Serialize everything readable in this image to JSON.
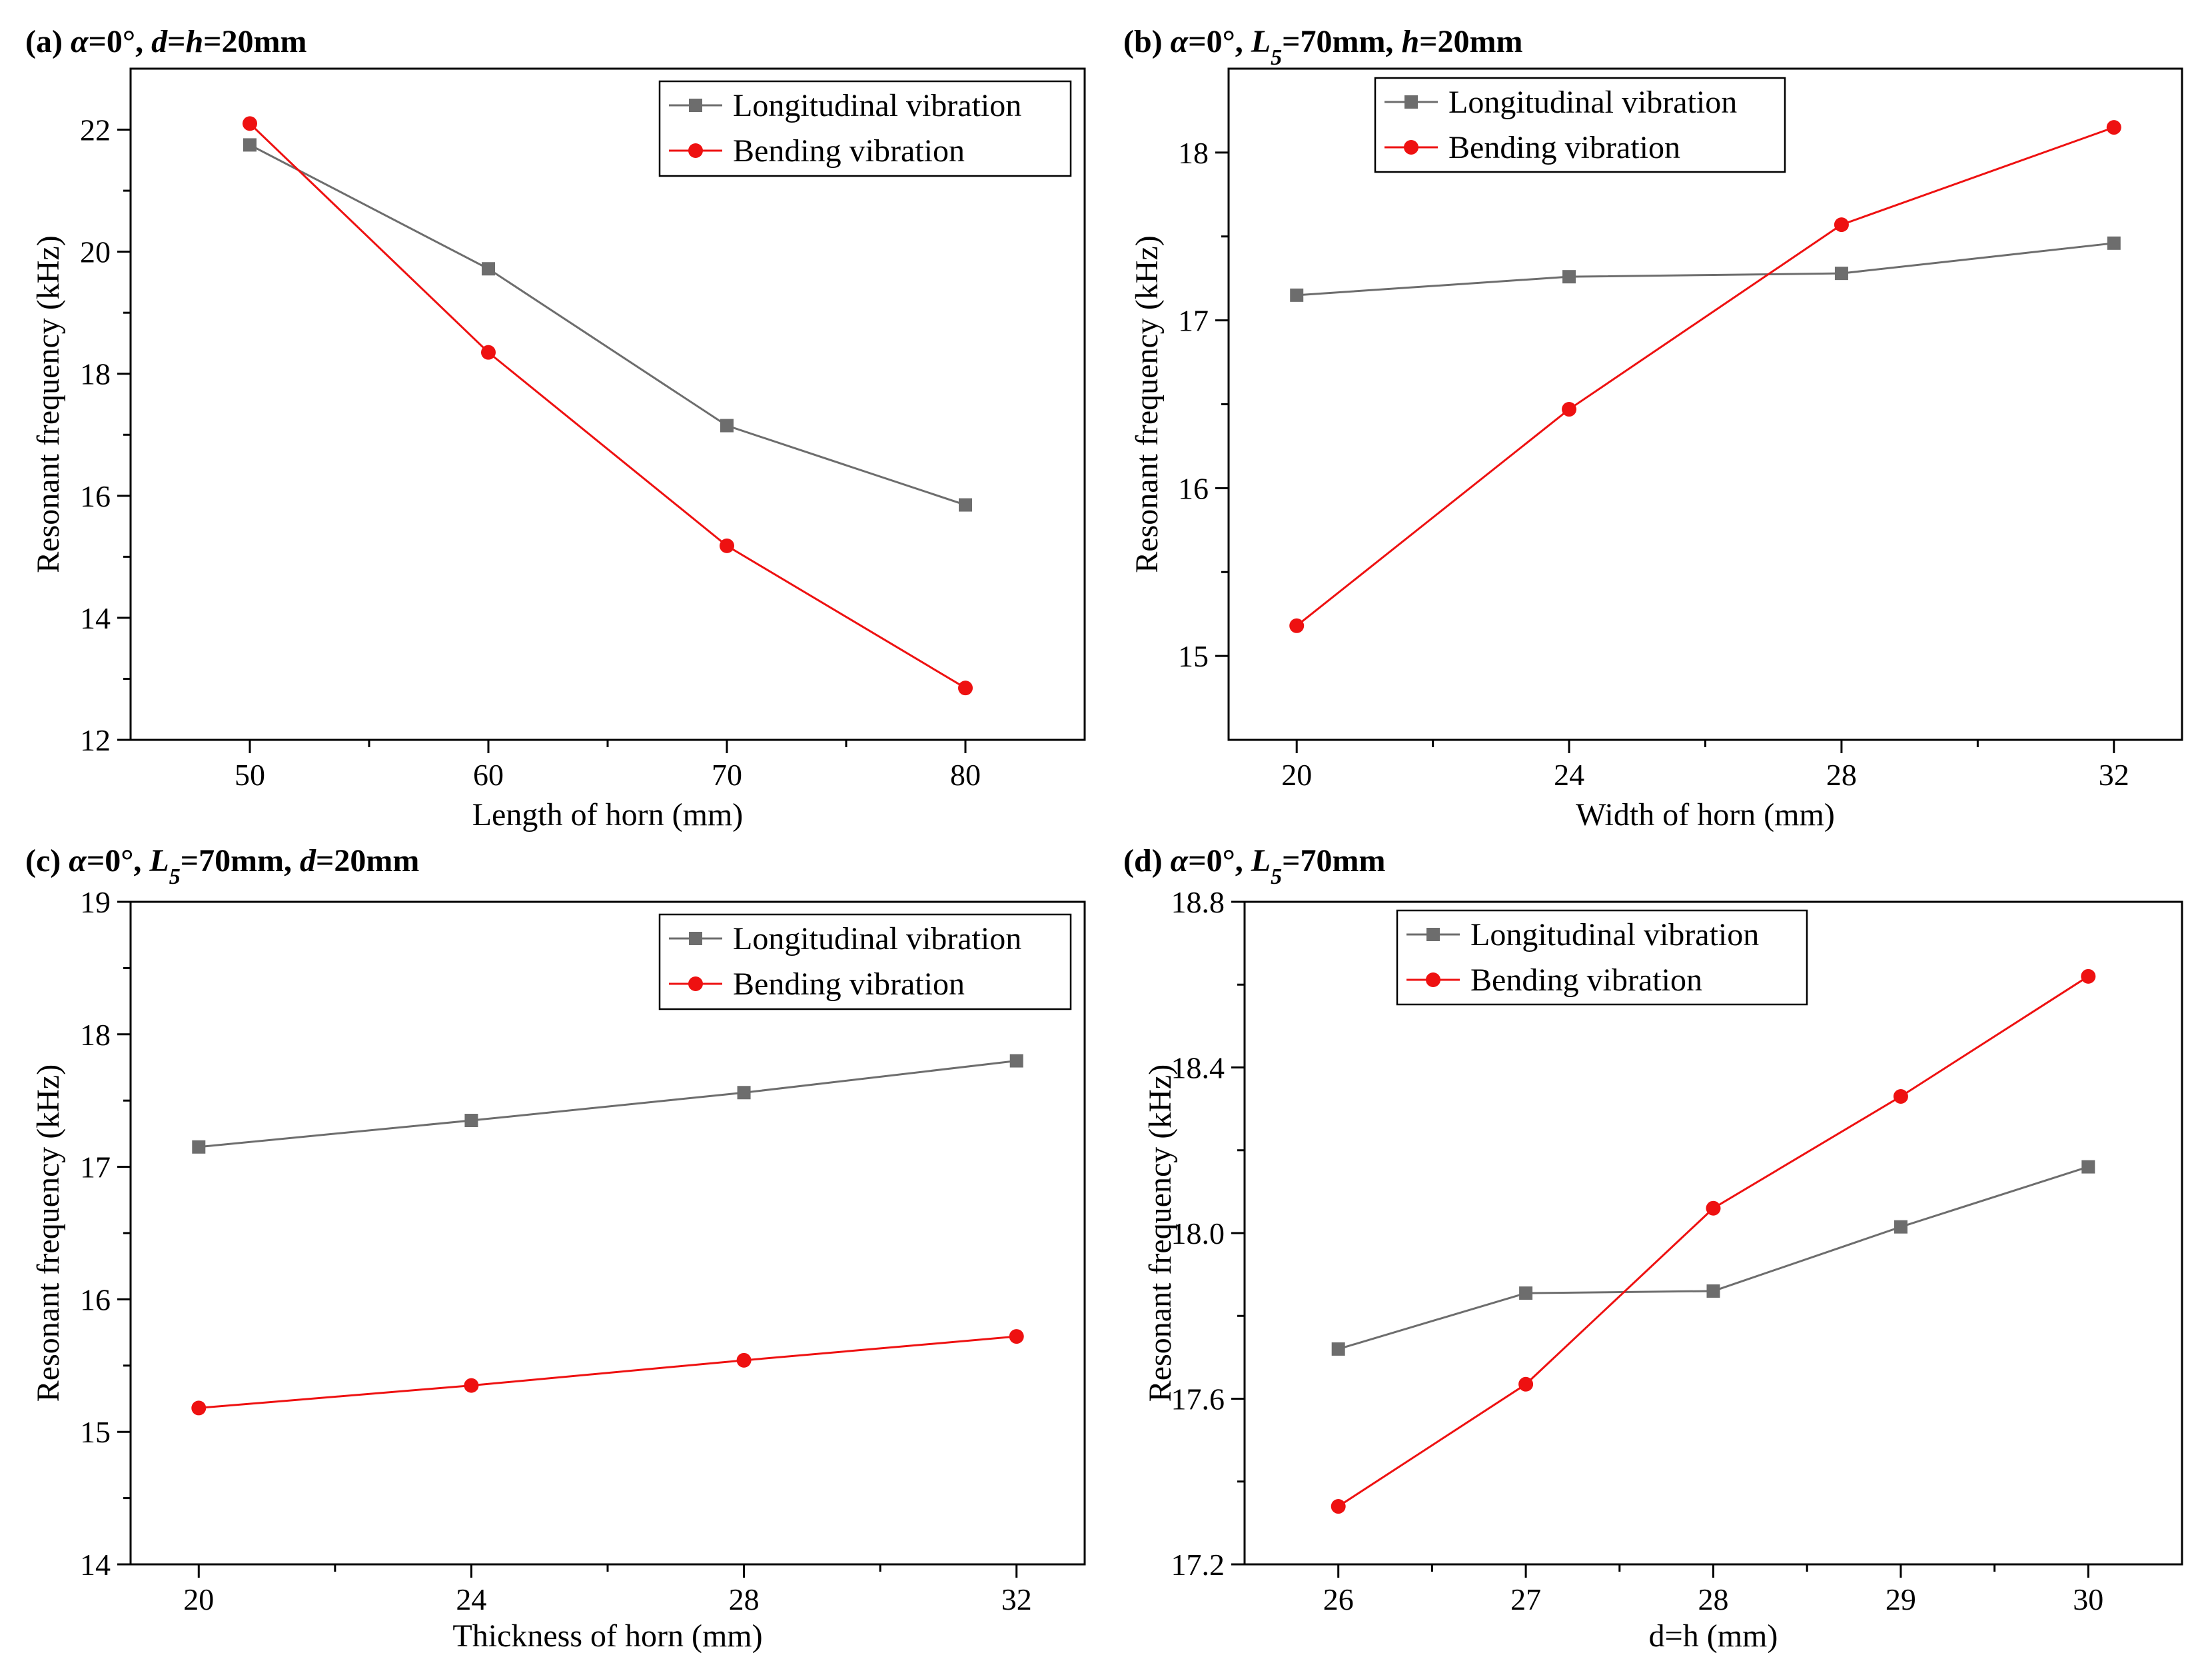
{
  "colors": {
    "longitudinal": "#6d6d6d",
    "bending": "#ee1111",
    "axis": "#000000"
  },
  "chart_data": [
    {
      "type": "line",
      "title_parts": [
        {
          "text": "(a) ",
          "italic": false
        },
        {
          "text": "α",
          "italic": true
        },
        {
          "text": "=0°, ",
          "italic": false
        },
        {
          "text": "d",
          "italic": true
        },
        {
          "text": "=",
          "italic": false
        },
        {
          "text": "h",
          "italic": true
        },
        {
          "text": "=20mm",
          "italic": false
        }
      ],
      "title": "(a) α=0°, d=h=20mm",
      "xlabel": "Length of horn (mm)",
      "ylabel": "Resonant frequency (kHz)",
      "xlim": [
        45,
        85
      ],
      "ylim": [
        12,
        23
      ],
      "xticks": [
        50,
        60,
        70,
        80
      ],
      "xtick_labels": [
        "50",
        "60",
        "70",
        "80"
      ],
      "yticks": [
        12,
        14,
        16,
        18,
        20,
        22
      ],
      "ytick_labels": [
        "12",
        "14",
        "16",
        "18",
        "20",
        "22"
      ],
      "x": [
        50,
        60,
        70,
        80
      ],
      "legend_position": "top-right",
      "series": [
        {
          "name": "Longitudinal vibration",
          "marker": "square",
          "values": [
            21.75,
            19.72,
            17.15,
            15.85
          ]
        },
        {
          "name": "Bending vibration",
          "marker": "circle",
          "values": [
            22.1,
            18.35,
            15.18,
            12.85
          ]
        }
      ]
    },
    {
      "type": "line",
      "title_parts": [
        {
          "text": "(b) ",
          "italic": false
        },
        {
          "text": "α",
          "italic": true
        },
        {
          "text": "=0°, ",
          "italic": false
        },
        {
          "text": "L",
          "italic": true
        },
        {
          "text": "5",
          "italic": true,
          "sub": true
        },
        {
          "text": "=70mm, ",
          "italic": false
        },
        {
          "text": "h",
          "italic": true
        },
        {
          "text": "=20mm",
          "italic": false
        }
      ],
      "title": "(b) α=0°, L5=70mm, h=20mm",
      "xlabel": "Width of horn (mm)",
      "ylabel": "Resonant frequency (kHz)",
      "xlim": [
        19,
        33
      ],
      "ylim": [
        14.5,
        18.5
      ],
      "xticks": [
        20,
        24,
        28,
        32
      ],
      "xtick_labels": [
        "20",
        "24",
        "28",
        "32"
      ],
      "yticks": [
        15,
        16,
        17,
        18
      ],
      "ytick_labels": [
        "15",
        "16",
        "17",
        "18"
      ],
      "x": [
        20,
        24,
        28,
        32
      ],
      "legend_position": "top-right",
      "series": [
        {
          "name": "Longitudinal vibration",
          "marker": "square",
          "values": [
            17.15,
            17.26,
            17.28,
            17.46
          ]
        },
        {
          "name": "Bending vibration",
          "marker": "circle",
          "values": [
            15.18,
            16.47,
            17.57,
            18.15
          ]
        }
      ]
    },
    {
      "type": "line",
      "title_parts": [
        {
          "text": "(c) ",
          "italic": false
        },
        {
          "text": "α",
          "italic": true
        },
        {
          "text": "=0°, ",
          "italic": false
        },
        {
          "text": "L",
          "italic": true
        },
        {
          "text": "5",
          "italic": true,
          "sub": true
        },
        {
          "text": "=70mm, ",
          "italic": false
        },
        {
          "text": "d",
          "italic": true
        },
        {
          "text": "=20mm",
          "italic": false
        }
      ],
      "title": "(c) α=0°, L5=70mm, d=20mm",
      "xlabel": "Thickness of horn (mm)",
      "ylabel": "Resonant frequency (kHz)",
      "xlim": [
        19,
        33
      ],
      "ylim": [
        14,
        19
      ],
      "xticks": [
        20,
        24,
        28,
        32
      ],
      "xtick_labels": [
        "20",
        "24",
        "28",
        "32"
      ],
      "yticks": [
        14,
        15,
        16,
        17,
        18,
        19
      ],
      "ytick_labels": [
        "14",
        "15",
        "16",
        "17",
        "18",
        "19"
      ],
      "x": [
        20,
        24,
        28,
        32
      ],
      "legend_position": "top-right",
      "series": [
        {
          "name": "Longitudinal vibration",
          "marker": "square",
          "values": [
            17.15,
            17.35,
            17.56,
            17.8
          ]
        },
        {
          "name": "Bending vibration",
          "marker": "circle",
          "values": [
            15.18,
            15.35,
            15.54,
            15.72
          ]
        }
      ]
    },
    {
      "type": "line",
      "title_parts": [
        {
          "text": "(d) ",
          "italic": false
        },
        {
          "text": "α",
          "italic": true
        },
        {
          "text": "=0°, ",
          "italic": false
        },
        {
          "text": "L",
          "italic": true
        },
        {
          "text": "5",
          "italic": true,
          "sub": true
        },
        {
          "text": "=70mm",
          "italic": false
        }
      ],
      "title": "(d) α=0°, L5=70mm",
      "xlabel": "d=h (mm)",
      "ylabel": "Resonant frequency (kHz)",
      "xlim": [
        25.5,
        30.5
      ],
      "ylim": [
        17.2,
        18.8
      ],
      "xticks": [
        26,
        27,
        28,
        29,
        30
      ],
      "xtick_labels": [
        "26",
        "27",
        "28",
        "29",
        "30"
      ],
      "yticks": [
        17.2,
        17.6,
        18.0,
        18.4,
        18.8
      ],
      "ytick_labels": [
        "17.2",
        "17.6",
        "18.0",
        "18.4",
        "18.8"
      ],
      "x": [
        26,
        27,
        28,
        29,
        30
      ],
      "legend_position": "top-center",
      "series": [
        {
          "name": "Longitudinal vibration",
          "marker": "square",
          "values": [
            17.72,
            17.855,
            17.86,
            18.015,
            18.16
          ]
        },
        {
          "name": "Bending vibration",
          "marker": "circle",
          "values": [
            17.34,
            17.635,
            18.06,
            18.33,
            18.62
          ]
        }
      ]
    }
  ]
}
